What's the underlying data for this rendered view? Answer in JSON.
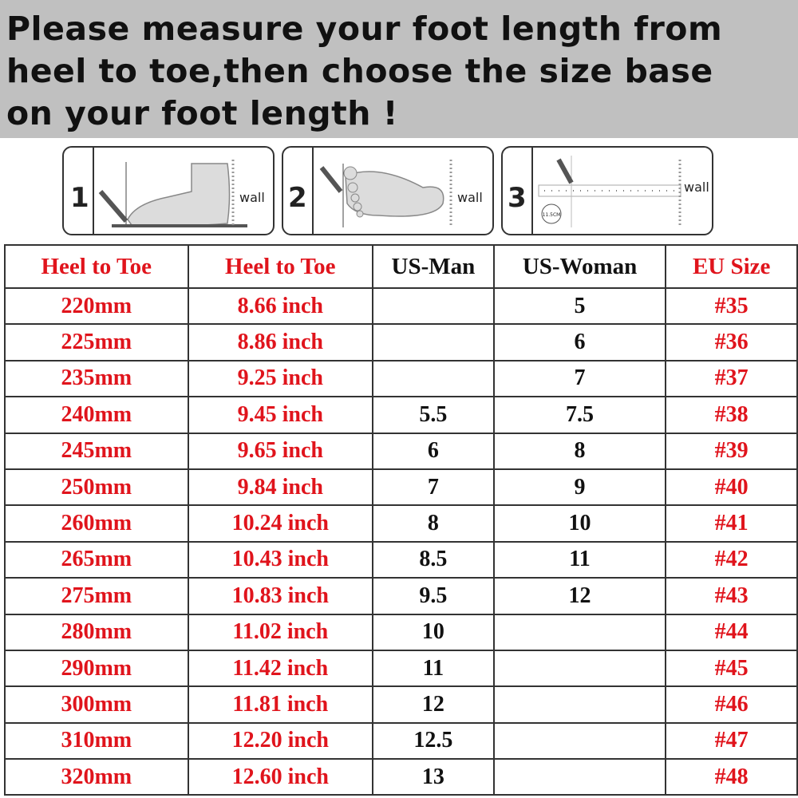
{
  "banner": {
    "lines": [
      "Please measure your foot length from",
      "heel to toe,then choose the size base",
      "on your foot length !"
    ]
  },
  "steps": [
    {
      "number": "1",
      "label": "wall"
    },
    {
      "number": "2",
      "label": "wall"
    },
    {
      "number": "3",
      "label": "wall",
      "badge": "11.5CM"
    }
  ],
  "colors": {
    "accent": "#e0141c",
    "banner_bg": "#c0c0c0"
  },
  "table": {
    "headers": [
      "Heel to Toe",
      "Heel to Toe",
      "US-Man",
      "US-Woman",
      "EU Size"
    ],
    "rows": [
      [
        "220mm",
        "8.66 inch",
        "",
        "5",
        "#35"
      ],
      [
        "225mm",
        "8.86 inch",
        "",
        "6",
        "#36"
      ],
      [
        "235mm",
        "9.25 inch",
        "",
        "7",
        "#37"
      ],
      [
        "240mm",
        "9.45 inch",
        "5.5",
        "7.5",
        "#38"
      ],
      [
        "245mm",
        "9.65 inch",
        "6",
        "8",
        "#39"
      ],
      [
        "250mm",
        "9.84 inch",
        "7",
        "9",
        "#40"
      ],
      [
        "260mm",
        "10.24 inch",
        "8",
        "10",
        "#41"
      ],
      [
        "265mm",
        "10.43 inch",
        "8.5",
        "11",
        "#42"
      ],
      [
        "275mm",
        "10.83 inch",
        "9.5",
        "12",
        "#43"
      ],
      [
        "280mm",
        "11.02 inch",
        "10",
        "",
        "#44"
      ],
      [
        "290mm",
        "11.42 inch",
        "11",
        "",
        "#45"
      ],
      [
        "300mm",
        "11.81 inch",
        "12",
        "",
        "#46"
      ],
      [
        "310mm",
        "12.20 inch",
        "12.5",
        "",
        "#47"
      ],
      [
        "320mm",
        "12.60 inch",
        "13",
        "",
        "#48"
      ]
    ]
  }
}
